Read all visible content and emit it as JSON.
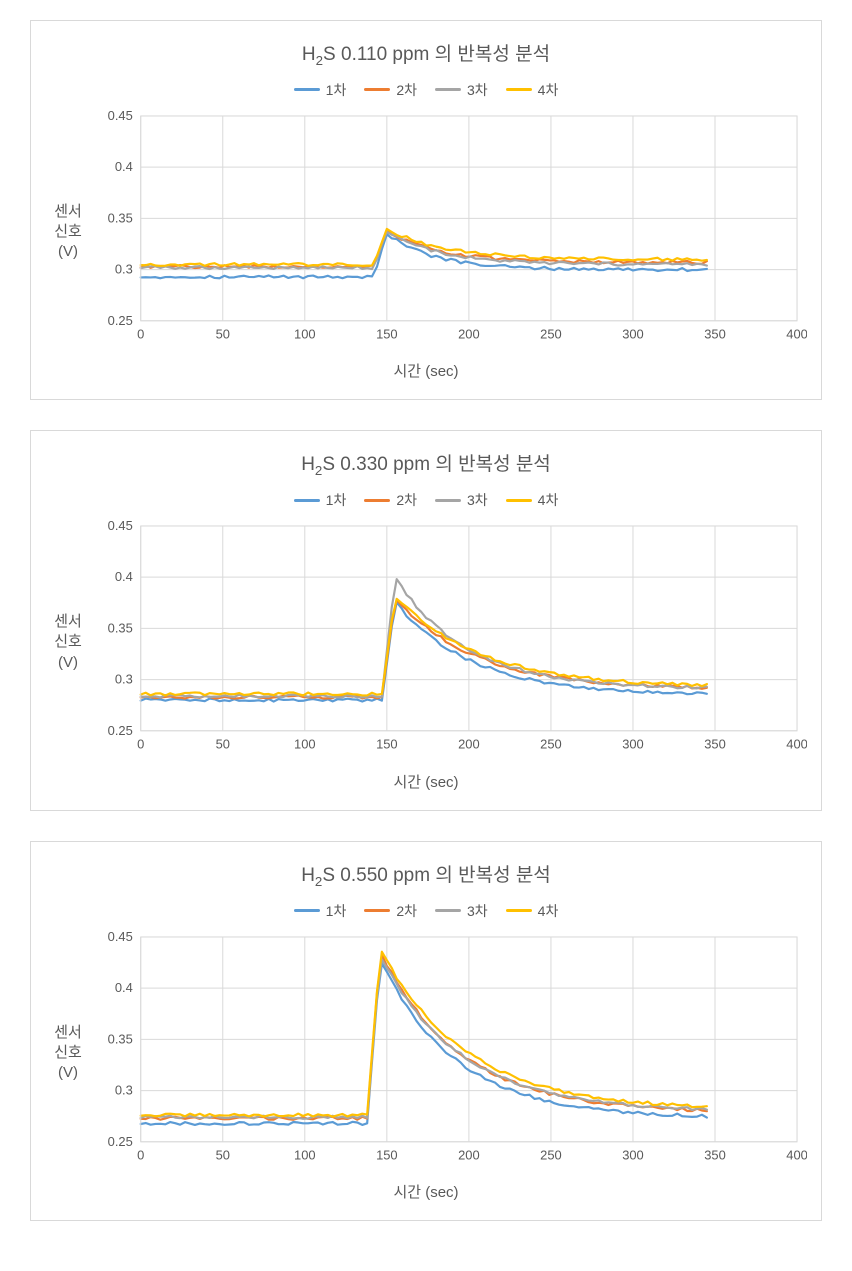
{
  "global": {
    "background_color": "#ffffff",
    "card_border_color": "#d9d9d9",
    "grid_color": "#d9d9d9",
    "axis_text_color": "#595959",
    "title_fontsize": 19,
    "tick_fontsize": 13,
    "axis_label_fontsize": 15,
    "legend_fontsize": 14,
    "line_width": 2.2,
    "y_axis_label_lines": [
      "센서",
      "신호",
      "(V)"
    ],
    "x_axis_label": "시간 (sec)",
    "legend_labels": [
      "1차",
      "2차",
      "3차",
      "4차"
    ],
    "series_colors": [
      "#5b9bd5",
      "#ed7d31",
      "#a5a5a5",
      "#ffc000"
    ],
    "xlim": [
      0,
      400
    ],
    "xtick_step": 50,
    "ylim": [
      0.25,
      0.45
    ],
    "ytick_step": 0.05,
    "data_x_max": 345
  },
  "charts": [
    {
      "title_html": "H<sub>2</sub>S 0.110 ppm 의 반복성 분석",
      "title_plain": "H2S 0.110 ppm 의 반복성 분석",
      "type": "line",
      "series": [
        {
          "label": "1차",
          "color": "#5b9bd5",
          "baseline": 0.293,
          "noise": 0.003,
          "peak_x": 150,
          "peak_y": 0.335,
          "after_level": 0.3,
          "decay_half_width": 20
        },
        {
          "label": "2차",
          "color": "#ed7d31",
          "baseline": 0.303,
          "noise": 0.003,
          "peak_x": 150,
          "peak_y": 0.338,
          "after_level": 0.307,
          "decay_half_width": 22
        },
        {
          "label": "3차",
          "color": "#a5a5a5",
          "baseline": 0.302,
          "noise": 0.003,
          "peak_x": 150,
          "peak_y": 0.338,
          "after_level": 0.305,
          "decay_half_width": 22
        },
        {
          "label": "4차",
          "color": "#ffc000",
          "baseline": 0.305,
          "noise": 0.003,
          "peak_x": 150,
          "peak_y": 0.34,
          "after_level": 0.31,
          "decay_half_width": 24
        }
      ]
    },
    {
      "title_html": "H<sub>2</sub>S 0.330 ppm 의 반복성 분석",
      "title_plain": "H2S 0.330 ppm 의 반복성 분석",
      "type": "line",
      "series": [
        {
          "label": "1차",
          "color": "#5b9bd5",
          "baseline": 0.28,
          "noise": 0.003,
          "peak_x": 155,
          "peak_y": 0.376,
          "after_level": 0.285,
          "decay_half_width": 32
        },
        {
          "label": "2차",
          "color": "#ed7d31",
          "baseline": 0.283,
          "noise": 0.003,
          "peak_x": 155,
          "peak_y": 0.38,
          "after_level": 0.29,
          "decay_half_width": 34
        },
        {
          "label": "3차",
          "color": "#a5a5a5",
          "baseline": 0.284,
          "noise": 0.003,
          "peak_x": 155,
          "peak_y": 0.4,
          "after_level": 0.291,
          "decay_half_width": 30
        },
        {
          "label": "4차",
          "color": "#ffc000",
          "baseline": 0.286,
          "noise": 0.003,
          "peak_x": 155,
          "peak_y": 0.382,
          "after_level": 0.292,
          "decay_half_width": 36
        }
      ]
    },
    {
      "title_html": "H<sub>2</sub>S 0.550 ppm 의 반복성 분석",
      "title_plain": "H2S 0.550 ppm 의 반복성 분석",
      "type": "line",
      "series": [
        {
          "label": "1차",
          "color": "#5b9bd5",
          "baseline": 0.268,
          "noise": 0.003,
          "peak_x": 146,
          "peak_y": 0.428,
          "after_level": 0.273,
          "decay_half_width": 32
        },
        {
          "label": "2차",
          "color": "#ed7d31",
          "baseline": 0.273,
          "noise": 0.003,
          "peak_x": 146,
          "peak_y": 0.435,
          "after_level": 0.278,
          "decay_half_width": 34
        },
        {
          "label": "3차",
          "color": "#a5a5a5",
          "baseline": 0.274,
          "noise": 0.003,
          "peak_x": 146,
          "peak_y": 0.432,
          "after_level": 0.279,
          "decay_half_width": 34
        },
        {
          "label": "4차",
          "color": "#ffc000",
          "baseline": 0.276,
          "noise": 0.003,
          "peak_x": 146,
          "peak_y": 0.438,
          "after_level": 0.281,
          "decay_half_width": 36
        }
      ]
    }
  ]
}
